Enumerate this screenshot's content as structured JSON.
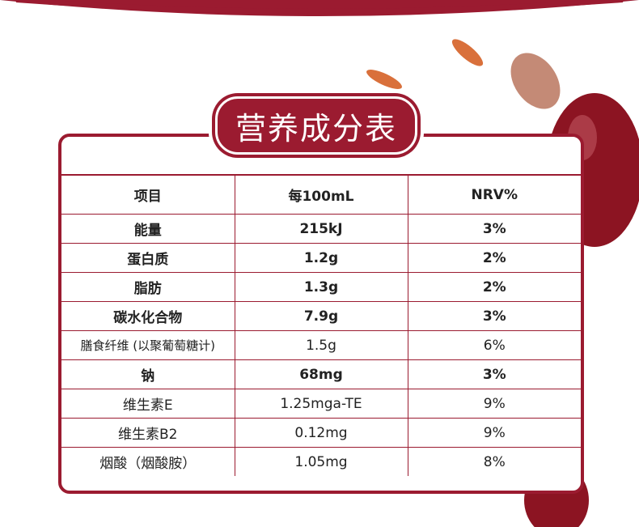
{
  "title": "营养成分表",
  "table": {
    "header": [
      "项目",
      "每100mL",
      "NRV%"
    ],
    "rows": [
      [
        "能量",
        "215kJ",
        "3%"
      ],
      [
        "蛋白质",
        "1.2g",
        "2%"
      ],
      [
        "脂肪",
        "1.3g",
        "2%"
      ],
      [
        "碳水化合物",
        "7.9g",
        "3%"
      ],
      [
        "膳食纤维 (以聚葡萄糖计)",
        "1.5g",
        "6%"
      ],
      [
        "钠",
        "68mg",
        "3%"
      ],
      [
        "维生素E",
        "1.25mga-TE",
        "9%"
      ],
      [
        "维生素B2",
        "0.12mg",
        "9%"
      ],
      [
        "烟酸（烟酸胺）",
        "1.05mg",
        "8%"
      ]
    ]
  }
}
